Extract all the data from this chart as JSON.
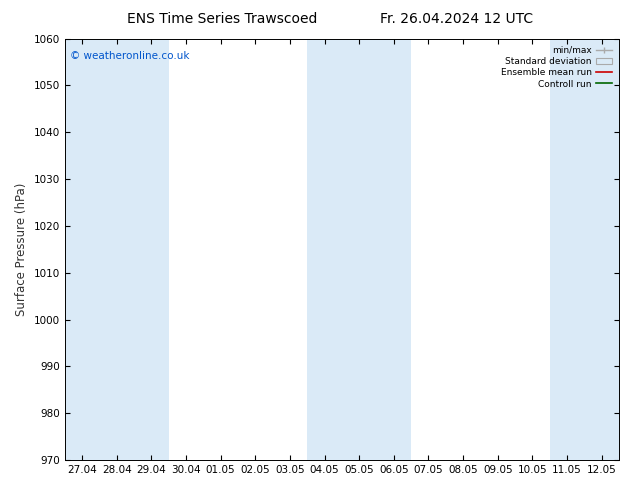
{
  "title_left": "ENS Time Series Trawscoed",
  "title_right": "Fr. 26.04.2024 12 UTC",
  "ylabel": "Surface Pressure (hPa)",
  "ylim": [
    970,
    1060
  ],
  "yticks": [
    970,
    980,
    990,
    1000,
    1010,
    1020,
    1030,
    1040,
    1050,
    1060
  ],
  "xlabels": [
    "27.04",
    "28.04",
    "29.04",
    "30.04",
    "01.05",
    "02.05",
    "03.05",
    "04.05",
    "05.05",
    "06.05",
    "07.05",
    "08.05",
    "09.05",
    "10.05",
    "11.05",
    "12.05"
  ],
  "band_color": "#daeaf7",
  "bg_color": "#ffffff",
  "copyright_text": "© weatheronline.co.uk",
  "copyright_color": "#0055cc",
  "legend_items": [
    "min/max",
    "Standard deviation",
    "Ensemble mean run",
    "Controll run"
  ],
  "shaded_indices": [
    0,
    1,
    2,
    7,
    8,
    9,
    14,
    15
  ],
  "title_fontsize": 10,
  "tick_fontsize": 7.5,
  "ylabel_fontsize": 8.5
}
